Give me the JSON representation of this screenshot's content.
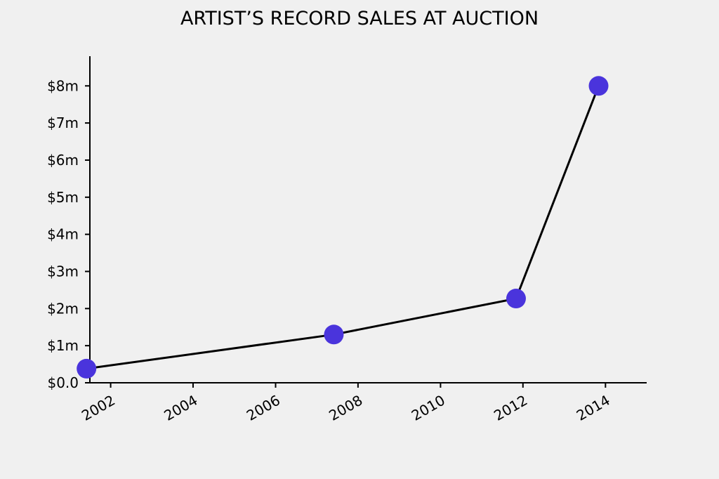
{
  "chart_data": {
    "type": "line",
    "title": "ARTIST’S RECORD SALES AT AUCTION",
    "xlabel": "",
    "ylabel": "",
    "x_axis_kind": "date",
    "xlim": [
      "2001-07-01",
      "2015-01-01"
    ],
    "ylim": [
      0,
      8.8
    ],
    "y_unit": "millions of dollars",
    "grid": false,
    "legend": "none",
    "x_ticks": [
      {
        "value": "2002-01-01",
        "label": "2002"
      },
      {
        "value": "2004-01-01",
        "label": "2004"
      },
      {
        "value": "2006-01-01",
        "label": "2006"
      },
      {
        "value": "2008-01-01",
        "label": "2008"
      },
      {
        "value": "2010-01-01",
        "label": "2010"
      },
      {
        "value": "2012-01-01",
        "label": "2012"
      },
      {
        "value": "2014-01-01",
        "label": "2014"
      }
    ],
    "y_ticks": [
      {
        "value": 0,
        "label": "$0.0"
      },
      {
        "value": 1,
        "label": "$1m"
      },
      {
        "value": 2,
        "label": "$2m"
      },
      {
        "value": 3,
        "label": "$3m"
      },
      {
        "value": 4,
        "label": "$4m"
      },
      {
        "value": 5,
        "label": "$5m"
      },
      {
        "value": 6,
        "label": "$6m"
      },
      {
        "value": 7,
        "label": "$7m"
      },
      {
        "value": 8,
        "label": "$8m"
      }
    ],
    "series": [
      {
        "x": [
          "2001-06-01",
          "2007-06-01",
          "2011-11-01",
          "2013-11-01"
        ],
        "y": [
          0.38,
          1.3,
          2.27,
          8.0
        ]
      }
    ],
    "colors": {
      "line": "#000000",
      "marker": "#4a34dc",
      "background": "#f0f0f0"
    }
  }
}
